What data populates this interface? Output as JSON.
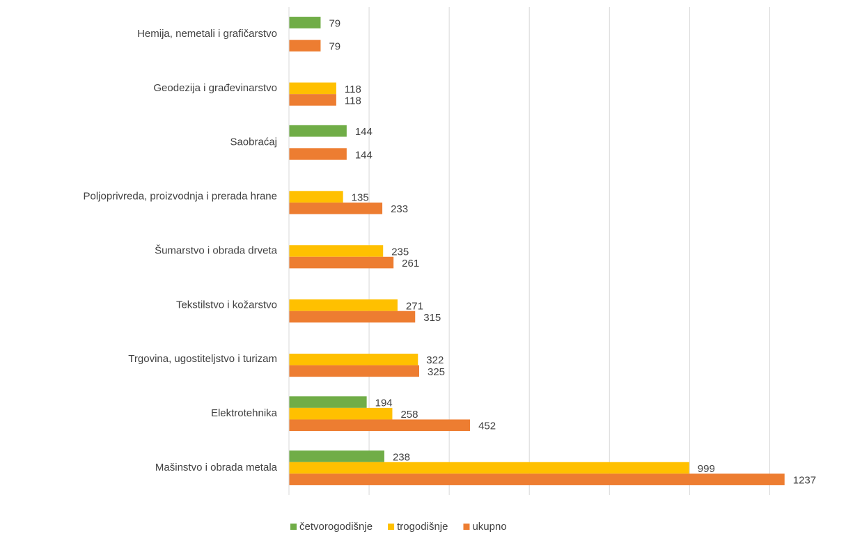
{
  "chart_data": {
    "type": "hbar",
    "categories": [
      "Hemija, nemetali i grafičarstvo",
      "Geodezija i građevinarstvo",
      "Saobraćaj",
      "Poljoprivreda, proizvodnja i prerada hrane",
      "Šumarstvo i obrada drveta",
      "Tekstilstvo i kožarstvo",
      "Trgovina, ugostiteljstvo i turizam",
      "Elektrotehnika",
      "Mašinstvo i obrada metala"
    ],
    "series": [
      {
        "name": "četvorogodišnje",
        "color": "#70ad47",
        "values": [
          79,
          null,
          144,
          null,
          null,
          null,
          null,
          194,
          238
        ]
      },
      {
        "name": "trogodišnje",
        "color": "#ffc000",
        "values": [
          null,
          118,
          null,
          135,
          235,
          271,
          322,
          258,
          999
        ]
      },
      {
        "name": "ukupno",
        "color": "#ed7d31",
        "values": [
          79,
          118,
          144,
          233,
          261,
          315,
          325,
          452,
          1237
        ]
      }
    ],
    "xlim": [
      0,
      1300
    ],
    "xticks": [
      0,
      200,
      400,
      600,
      800,
      1000,
      1200
    ],
    "grid": true,
    "legend": "bottom"
  }
}
